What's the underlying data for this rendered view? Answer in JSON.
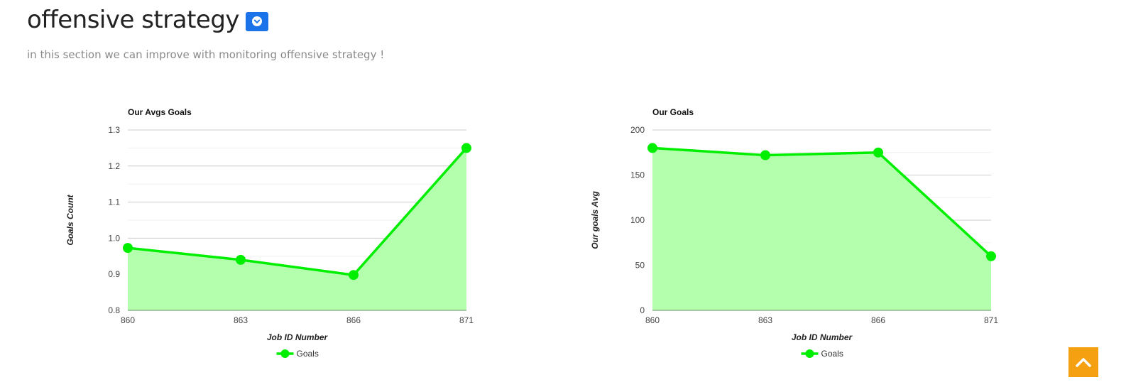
{
  "header": {
    "title": "offensive strategy",
    "subtitle": "in this section we can improve with monitoring offensive strategy !"
  },
  "colors": {
    "series": "#00ee00",
    "fill": "#b3ffad",
    "dropdown": "#1a73e8",
    "scroll_top": "#f5a011"
  },
  "chart_data": [
    {
      "type": "area",
      "title": "Our Avgs Goals",
      "xlabel": "Job ID Number",
      "ylabel": "Goals Count",
      "categories": [
        "860",
        "863",
        "866",
        "871"
      ],
      "y_ticks": [
        "0.8",
        "0.9",
        "1.0",
        "1.1",
        "1.2",
        "1.3"
      ],
      "ylim": [
        0.8,
        1.3
      ],
      "grid": true,
      "legend_position": "bottom",
      "series": [
        {
          "name": "Goals",
          "values": [
            0.973,
            0.94,
            0.898,
            1.25
          ]
        }
      ]
    },
    {
      "type": "area",
      "title": "Our Goals",
      "xlabel": "Job ID Number",
      "ylabel": "Our goals Avg",
      "categories": [
        "860",
        "863",
        "866",
        "871"
      ],
      "y_ticks": [
        "0",
        "50",
        "100",
        "150",
        "200"
      ],
      "ylim": [
        0,
        200
      ],
      "grid": true,
      "legend_position": "bottom",
      "series": [
        {
          "name": "Goals",
          "values": [
            180,
            172,
            175,
            60
          ]
        }
      ]
    }
  ]
}
